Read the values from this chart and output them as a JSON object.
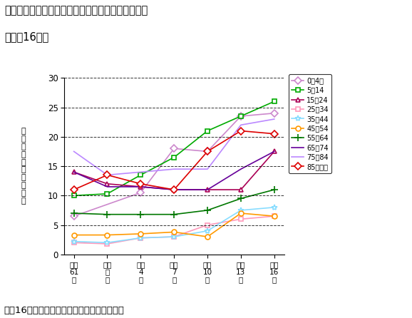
{
  "title_line1": "喘息・小児喘息の年齢階級別の通院者率の経年変化",
  "title_line2": "（平成16年）",
  "subtitle_bottom": "平成16年度厚生労働省国民生活基礎調査より",
  "ylabel_chars": [
    "通",
    "院",
    "者",
    "率",
    "（",
    "人",
    "口",
    "千",
    "対",
    "）"
  ],
  "x_labels": [
    "昭和\n61\n年",
    "平成\n元\n年",
    "平成\n4\n年",
    "平成\n7\n年",
    "平成\n10\n年",
    "平成\n13\n年",
    "平成\n16\n年"
  ],
  "x_values": [
    0,
    1,
    2,
    3,
    4,
    5,
    6
  ],
  "ylim": [
    0,
    30
  ],
  "yticks": [
    0,
    5,
    10,
    15,
    20,
    25,
    30
  ],
  "series": [
    {
      "label": "0〜4歳",
      "color": "#cc88cc",
      "marker": "D",
      "markersize": 5,
      "values": [
        6.5,
        null,
        10.5,
        18.0,
        17.5,
        23.5,
        24.0
      ]
    },
    {
      "label": "5〜14",
      "color": "#00aa00",
      "marker": "s",
      "markersize": 5,
      "values": [
        10.0,
        10.3,
        13.5,
        16.5,
        21.0,
        23.5,
        26.0
      ]
    },
    {
      "label": "15〜24",
      "color": "#aa0055",
      "marker": "^",
      "markersize": 5,
      "values": [
        14.0,
        12.0,
        11.5,
        11.0,
        11.0,
        11.0,
        17.5
      ]
    },
    {
      "label": "25〜34",
      "color": "#ff99bb",
      "marker": "s",
      "markersize": 4,
      "values": [
        2.0,
        1.8,
        2.8,
        3.0,
        5.0,
        6.0,
        6.5
      ]
    },
    {
      "label": "35〜44",
      "color": "#88ddff",
      "marker": "*",
      "markersize": 6,
      "values": [
        2.2,
        2.0,
        2.8,
        3.0,
        4.0,
        7.5,
        8.0
      ]
    },
    {
      "label": "45〜54",
      "color": "#ff9900",
      "marker": "o",
      "markersize": 5,
      "values": [
        3.3,
        3.3,
        3.5,
        3.8,
        3.0,
        7.0,
        6.5
      ]
    },
    {
      "label": "55〜64",
      "color": "#007700",
      "marker": "+",
      "markersize": 7,
      "values": [
        7.0,
        6.8,
        6.8,
        6.8,
        7.5,
        9.5,
        11.0
      ]
    },
    {
      "label": "65〜74",
      "color": "#660099",
      "marker": null,
      "markersize": 4,
      "values": [
        14.0,
        11.5,
        11.5,
        11.0,
        11.0,
        14.5,
        17.5
      ]
    },
    {
      "label": "75〜84",
      "color": "#bb88ff",
      "marker": null,
      "markersize": 4,
      "values": [
        17.5,
        13.5,
        14.0,
        14.5,
        14.5,
        22.0,
        23.0
      ]
    },
    {
      "label": "85歳以上",
      "color": "#dd0000",
      "marker": "D",
      "markersize": 5,
      "values": [
        11.0,
        13.5,
        12.0,
        11.0,
        17.5,
        21.0,
        20.5
      ]
    }
  ]
}
